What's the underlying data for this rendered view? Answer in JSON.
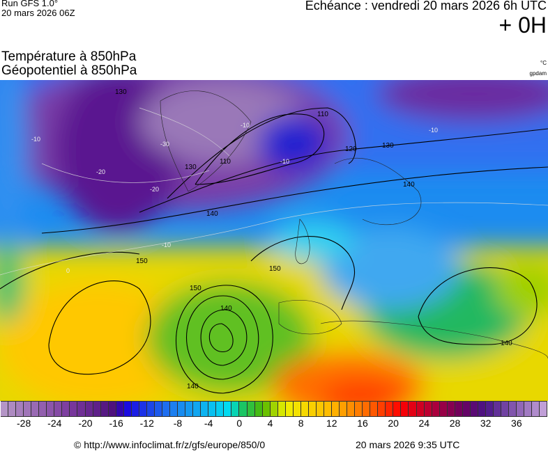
{
  "header": {
    "run": "Run GFS 1.0°",
    "run_date": "20 mars 2026 06Z",
    "echeance": "Echéance : vendredi 20 mars 2026 6h UTC",
    "lead": "+ 0H",
    "title_temperature": "Température à 850hPa",
    "title_geopotential": "Géopotentiel à 850hPa",
    "unit_temperature": "°C",
    "unit_geopotential": "gpdam"
  },
  "map": {
    "region": "europe",
    "geopotential_labels": [
      "130",
      "110",
      "110",
      "120",
      "130",
      "140",
      "140",
      "150",
      "150",
      "150",
      "140",
      "140",
      "140",
      "130"
    ],
    "temperature_labels": [
      "-10",
      "-20",
      "-20",
      "-30",
      "-10",
      "-10",
      "-10",
      "-10",
      "0"
    ]
  },
  "colorbar": {
    "min": -31,
    "max": 40,
    "tick_labels": [
      "-28",
      "-24",
      "-20",
      "-16",
      "-12",
      "-8",
      "-4",
      "0",
      "4",
      "8",
      "12",
      "16",
      "20",
      "24",
      "28",
      "32",
      "36"
    ],
    "color_stops": [
      {
        "t": -31,
        "color": "#b79ac8"
      },
      {
        "t": -22,
        "color": "#7b3a9e"
      },
      {
        "t": -16,
        "color": "#4a0c7a"
      },
      {
        "t": -15,
        "color": "#1a00e0"
      },
      {
        "t": -9,
        "color": "#1e78f0"
      },
      {
        "t": -1,
        "color": "#00e0f0"
      },
      {
        "t": 0,
        "color": "#10c878"
      },
      {
        "t": 3,
        "color": "#50b800"
      },
      {
        "t": 6,
        "color": "#f0f000"
      },
      {
        "t": 12,
        "color": "#ffb800"
      },
      {
        "t": 17,
        "color": "#ff6400"
      },
      {
        "t": 21,
        "color": "#ff0000"
      },
      {
        "t": 25,
        "color": "#b40038"
      },
      {
        "t": 29,
        "color": "#6a0060"
      },
      {
        "t": 32,
        "color": "#4a1488"
      },
      {
        "t": 40,
        "color": "#c8a8dc"
      }
    ]
  },
  "footer": {
    "copyright": "© http://www.infoclimat.fr/z/gfs/europe/850/0",
    "generated": "20 mars 2026  9:35 UTC"
  }
}
